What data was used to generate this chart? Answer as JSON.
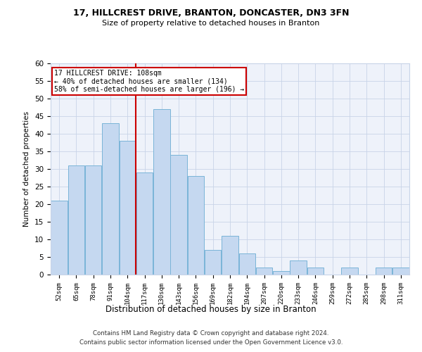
{
  "title1": "17, HILLCREST DRIVE, BRANTON, DONCASTER, DN3 3FN",
  "title2": "Size of property relative to detached houses in Branton",
  "xlabel": "Distribution of detached houses by size in Branton",
  "ylabel": "Number of detached properties",
  "categories": [
    "52sqm",
    "65sqm",
    "78sqm",
    "91sqm",
    "104sqm",
    "117sqm",
    "130sqm",
    "143sqm",
    "156sqm",
    "169sqm",
    "182sqm",
    "194sqm",
    "207sqm",
    "220sqm",
    "233sqm",
    "246sqm",
    "259sqm",
    "272sqm",
    "285sqm",
    "298sqm",
    "311sqm"
  ],
  "values": [
    21,
    31,
    31,
    43,
    38,
    29,
    47,
    34,
    28,
    7,
    11,
    6,
    2,
    1,
    4,
    2,
    0,
    2,
    0,
    2,
    2
  ],
  "bar_color": "#c5d8f0",
  "bar_edge_color": "#7ab4d8",
  "vline_x": 4.5,
  "vline_color": "#cc0000",
  "annotation_text": "17 HILLCREST DRIVE: 108sqm\n← 40% of detached houses are smaller (134)\n58% of semi-detached houses are larger (196) →",
  "annotation_box_color": "#ffffff",
  "annotation_box_edge": "#cc0000",
  "ylim": [
    0,
    60
  ],
  "yticks": [
    0,
    5,
    10,
    15,
    20,
    25,
    30,
    35,
    40,
    45,
    50,
    55,
    60
  ],
  "background_color": "#eef2fa",
  "grid_color": "#c8d4e8",
  "footer1": "Contains HM Land Registry data © Crown copyright and database right 2024.",
  "footer2": "Contains public sector information licensed under the Open Government Licence v3.0."
}
